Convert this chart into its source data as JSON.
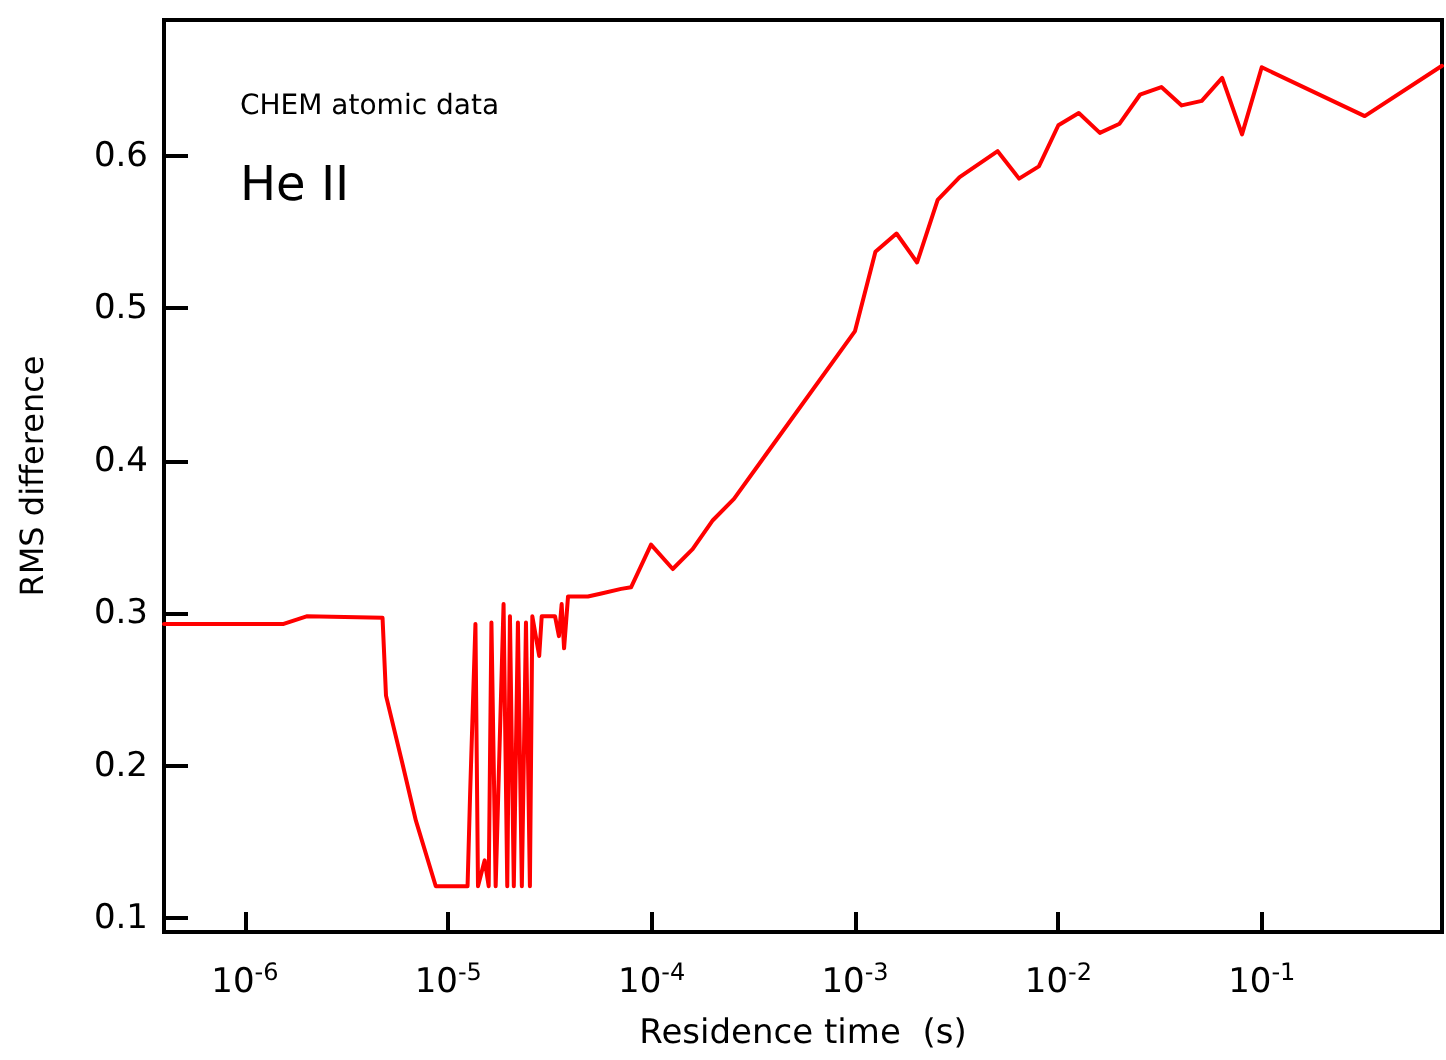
{
  "chart_data": {
    "type": "line",
    "xlabel": "Residence time  (s)",
    "ylabel": "RMS difference",
    "annotations": [
      "CHEM atomic data",
      "He II"
    ],
    "log": "x",
    "grid": false,
    "marker": "none",
    "line_style": "solid",
    "xlim": [
      4e-07,
      0.77
    ],
    "ylim": [
      0.091,
      0.689
    ],
    "xticks": [
      {
        "value": 1e-06,
        "label": "10$^{-6}$"
      },
      {
        "value": 1e-05,
        "label": "10$^{-5}$"
      },
      {
        "value": 0.0001,
        "label": "10$^{-4}$"
      },
      {
        "value": 0.001,
        "label": "10$^{-3}$"
      },
      {
        "value": 0.01,
        "label": "10$^{-2}$"
      },
      {
        "value": 0.1,
        "label": "10$^{-1}$"
      }
    ],
    "yticks": [
      0.1,
      0.2,
      0.3,
      0.4,
      0.5,
      0.6
    ],
    "series": [
      {
        "color": "#ff0000",
        "x": [
          4e-07,
          1.55e-06,
          2.01e-06,
          4.75e-06,
          4.94e-06,
          5.96e-06,
          6.93e-06,
          8.68e-06,
          1.244e-05,
          1.28e-05,
          1.36e-05,
          1.4e-05,
          1.51e-05,
          1.58e-05,
          1.63e-05,
          1.71e-05,
          1.87e-05,
          1.95e-05,
          2.01e-05,
          2.1e-05,
          2.2e-05,
          2.3e-05,
          2.41e-05,
          2.52e-05,
          2.59e-05,
          2.8e-05,
          2.88e-05,
          3.35e-05,
          3.5e-05,
          3.61e-05,
          3.71e-05,
          3.88e-05,
          4.86e-05,
          5.66e-05,
          7.08e-05,
          7.92e-05,
          9.93e-05,
          0.000127,
          0.000159,
          0.0002,
          0.000254,
          0.001,
          0.00126,
          0.0016,
          0.00202,
          0.00255,
          0.00327,
          0.00503,
          0.00641,
          0.00802,
          0.01,
          0.0126,
          0.016,
          0.02,
          0.0252,
          0.0321,
          0.0404,
          0.0507,
          0.0639,
          0.08,
          0.1,
          0.321,
          0.77
        ],
        "values": [
          0.293,
          0.293,
          0.298,
          0.297,
          0.246,
          0.201,
          0.164,
          0.121,
          0.121,
          0.181,
          0.293,
          0.121,
          0.138,
          0.121,
          0.294,
          0.121,
          0.306,
          0.121,
          0.298,
          0.121,
          0.294,
          0.121,
          0.294,
          0.121,
          0.298,
          0.272,
          0.298,
          0.298,
          0.285,
          0.306,
          0.277,
          0.311,
          0.311,
          0.313,
          0.316,
          0.317,
          0.345,
          0.329,
          0.342,
          0.361,
          0.375,
          0.485,
          0.537,
          0.549,
          0.53,
          0.571,
          0.586,
          0.603,
          0.585,
          0.593,
          0.62,
          0.628,
          0.615,
          0.621,
          0.64,
          0.645,
          0.633,
          0.636,
          0.651,
          0.614,
          0.658,
          0.626,
          0.659
        ]
      }
    ]
  }
}
